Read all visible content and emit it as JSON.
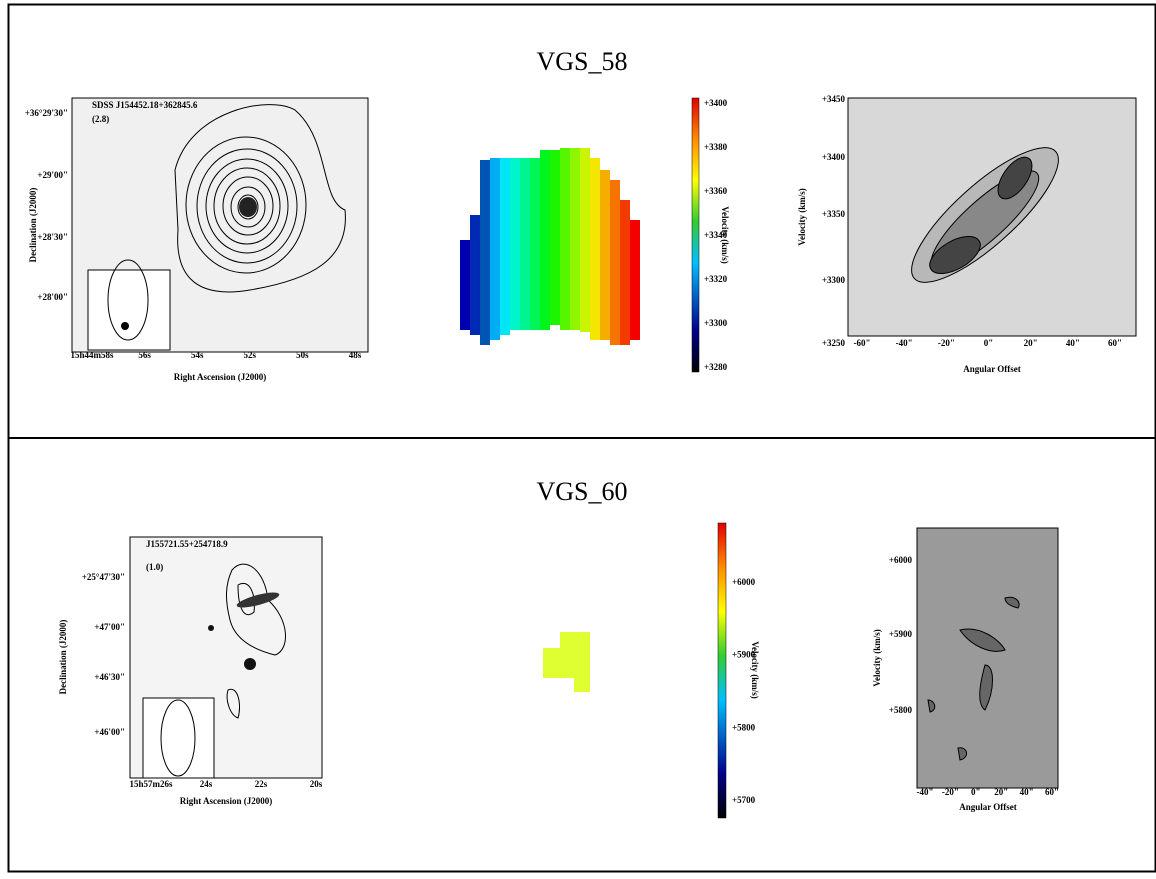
{
  "panels": [
    {
      "title": "VGS_58",
      "image": {
        "label": "SDSS J154452.18+362845.6",
        "note": "(2.8)",
        "xlabel": "Right Ascension (J2000)",
        "ylabel": "Declination (J2000)",
        "xticks": [
          "15h44m58s",
          "56s",
          "54s",
          "52s",
          "50s",
          "48s"
        ],
        "yticks": [
          "+36°29'30\"",
          "+29'00\"",
          "+28'30\"",
          "+28'00\""
        ]
      },
      "colorbar": {
        "label": "Velocity (km/s)",
        "ticks": [
          "+3400",
          "+3380",
          "+3360",
          "+3340",
          "+3320",
          "+3300",
          "+3280"
        ]
      },
      "pv": {
        "xlabel": "Angular Offset",
        "ylabel": "Velocity (km/s)",
        "xticks": [
          "-60\"",
          "-40\"",
          "-20\"",
          "0\"",
          "20\"",
          "40\"",
          "60\""
        ],
        "yticks": [
          "+3450",
          "+3400",
          "+3350",
          "+3300",
          "+3250"
        ]
      }
    },
    {
      "title": "VGS_60",
      "image": {
        "label": "J155721.55+254718.9",
        "note": "(1.0)",
        "xlabel": "Right Ascension (J2000)",
        "ylabel": "Declination (J2000)",
        "xticks": [
          "15h57m26s",
          "24s",
          "22s",
          "20s"
        ],
        "yticks": [
          "+25°47'30\"",
          "+47'00\"",
          "+46'30\"",
          "+46'00\""
        ]
      },
      "colorbar": {
        "label": "Velocity (km/s)",
        "ticks": [
          "+6000",
          "+5900",
          "+5800",
          "+5700"
        ]
      },
      "pv": {
        "xlabel": "Angular Offset",
        "ylabel": "Velocity (km/s)",
        "xticks": [
          "-40\"",
          "-20\"",
          "0\"",
          "20\"",
          "40\"",
          "60\""
        ],
        "yticks": [
          "+6000",
          "+5900",
          "+5800"
        ]
      }
    }
  ]
}
